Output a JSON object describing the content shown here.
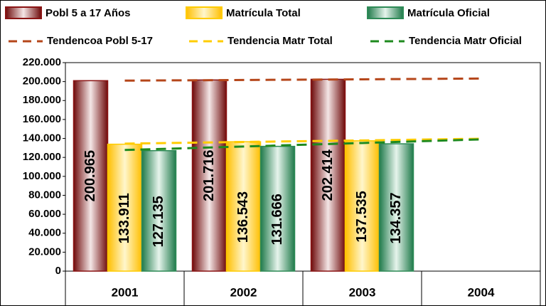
{
  "chart_data": {
    "type": "bar",
    "categories": [
      "2001",
      "2002",
      "2003",
      "2004"
    ],
    "series": [
      {
        "name": "Pobl 5 a 17 Años",
        "color": "#8b1414",
        "values": [
          200965,
          201716,
          202414,
          null
        ],
        "value_labels": [
          "200.965",
          "201.716",
          "202.414",
          null
        ]
      },
      {
        "name": "Matrícula Total",
        "color": "#ffcc00",
        "values": [
          133911,
          136543,
          137535,
          null
        ],
        "value_labels": [
          "133.911",
          "136.543",
          "137.535",
          null
        ]
      },
      {
        "name": "Matrícula Oficial",
        "color": "#2e8b57",
        "values": [
          127135,
          131666,
          134357,
          null
        ],
        "value_labels": [
          "127.135",
          "131.666",
          "134.357",
          null
        ]
      }
    ],
    "trend_lines": [
      {
        "name": "Tendencoa Pobl 5-17",
        "color": "#b5461a",
        "values": [
          201000,
          201700,
          202400,
          203200
        ]
      },
      {
        "name": "Tendencia Matr Total",
        "color": "#ffcc00",
        "values": [
          134500,
          136300,
          137900,
          139700
        ]
      },
      {
        "name": "Tendencia Matr Oficial",
        "color": "#1e8a1e",
        "values": [
          127800,
          131500,
          135200,
          139000
        ]
      }
    ],
    "ylim": [
      0,
      220000
    ],
    "yticks": [
      0,
      {
        "value": 20000,
        "label": "20.000"
      },
      {
        "value": 40000,
        "label": "40.000"
      },
      {
        "value": 60000,
        "label": "60.000"
      },
      {
        "value": 80000,
        "label": "80.000"
      },
      {
        "value": 100000,
        "label": "100.000"
      },
      {
        "value": 120000,
        "label": "120.000"
      },
      {
        "value": 140000,
        "label": "140.000"
      },
      {
        "value": 160000,
        "label": "160.000"
      },
      {
        "value": 180000,
        "label": "180.000"
      },
      {
        "value": 200000,
        "label": "200.000"
      },
      {
        "value": 220000,
        "label": "220.000"
      }
    ],
    "grid": false
  }
}
